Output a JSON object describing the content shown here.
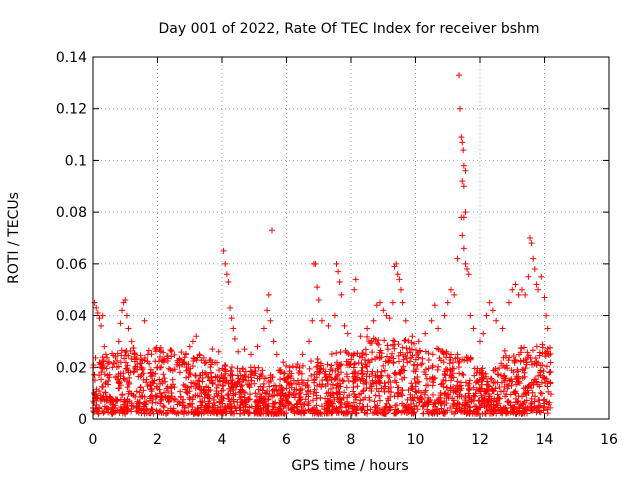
{
  "chart_data": {
    "type": "scatter",
    "title": "Day 001 of 2022, Rate Of TEC Index for receiver bshm",
    "xlabel": "GPS time / hours",
    "ylabel": "ROTI / TECUs",
    "xlim": [
      0,
      16
    ],
    "ylim": [
      0,
      0.14
    ],
    "xticks": [
      "0",
      "2",
      "4",
      "6",
      "8",
      "10",
      "12",
      "14",
      "16"
    ],
    "yticks": [
      "0",
      "0.02",
      "0.04",
      "0.06",
      "0.08",
      "0.1",
      "0.12",
      "0.14"
    ],
    "grid": true,
    "marker": "+",
    "color": "#ff0000",
    "series": [
      {
        "name": "ROTI",
        "points": [
          [
            0.05,
            0.045
          ],
          [
            0.1,
            0.043
          ],
          [
            0.15,
            0.041
          ],
          [
            0.2,
            0.039
          ],
          [
            0.25,
            0.036
          ],
          [
            0.3,
            0.04
          ],
          [
            0.35,
            0.028
          ],
          [
            0.4,
            0.025
          ],
          [
            0.5,
            0.022
          ],
          [
            0.6,
            0.02
          ],
          [
            0.7,
            0.024
          ],
          [
            0.8,
            0.03
          ],
          [
            0.85,
            0.037
          ],
          [
            0.9,
            0.042
          ],
          [
            0.95,
            0.045
          ],
          [
            1.0,
            0.046
          ],
          [
            1.05,
            0.04
          ],
          [
            1.1,
            0.035
          ],
          [
            1.2,
            0.03
          ],
          [
            1.3,
            0.025
          ],
          [
            1.5,
            0.02
          ],
          [
            1.6,
            0.038
          ],
          [
            1.7,
            0.025
          ],
          [
            1.8,
            0.018
          ],
          [
            2.0,
            0.02
          ],
          [
            2.2,
            0.022
          ],
          [
            2.4,
            0.019
          ],
          [
            2.6,
            0.021
          ],
          [
            2.8,
            0.022
          ],
          [
            3.0,
            0.028
          ],
          [
            3.1,
            0.03
          ],
          [
            3.2,
            0.032
          ],
          [
            3.3,
            0.025
          ],
          [
            3.5,
            0.022
          ],
          [
            3.7,
            0.027
          ],
          [
            3.9,
            0.026
          ],
          [
            4.05,
            0.065
          ],
          [
            4.1,
            0.06
          ],
          [
            4.15,
            0.056
          ],
          [
            4.2,
            0.053
          ],
          [
            4.25,
            0.043
          ],
          [
            4.3,
            0.039
          ],
          [
            4.35,
            0.035
          ],
          [
            4.4,
            0.031
          ],
          [
            4.5,
            0.026
          ],
          [
            4.7,
            0.027
          ],
          [
            4.9,
            0.025
          ],
          [
            5.1,
            0.028
          ],
          [
            5.3,
            0.035
          ],
          [
            5.4,
            0.042
          ],
          [
            5.45,
            0.048
          ],
          [
            5.5,
            0.038
          ],
          [
            5.55,
            0.073
          ],
          [
            5.6,
            0.03
          ],
          [
            5.7,
            0.025
          ],
          [
            5.9,
            0.022
          ],
          [
            6.1,
            0.02
          ],
          [
            6.3,
            0.02
          ],
          [
            6.5,
            0.025
          ],
          [
            6.7,
            0.03
          ],
          [
            6.8,
            0.038
          ],
          [
            6.85,
            0.06
          ],
          [
            6.9,
            0.06
          ],
          [
            6.95,
            0.051
          ],
          [
            7.0,
            0.046
          ],
          [
            7.1,
            0.038
          ],
          [
            7.3,
            0.036
          ],
          [
            7.5,
            0.04
          ],
          [
            7.55,
            0.06
          ],
          [
            7.6,
            0.057
          ],
          [
            7.65,
            0.053
          ],
          [
            7.7,
            0.048
          ],
          [
            7.8,
            0.036
          ],
          [
            7.9,
            0.033
          ],
          [
            8.1,
            0.05
          ],
          [
            8.15,
            0.054
          ],
          [
            8.3,
            0.032
          ],
          [
            8.5,
            0.035
          ],
          [
            8.7,
            0.038
          ],
          [
            8.8,
            0.044
          ],
          [
            8.9,
            0.045
          ],
          [
            9.0,
            0.042
          ],
          [
            9.1,
            0.04
          ],
          [
            9.2,
            0.039
          ],
          [
            9.3,
            0.045
          ],
          [
            9.35,
            0.059
          ],
          [
            9.4,
            0.06
          ],
          [
            9.45,
            0.056
          ],
          [
            9.5,
            0.054
          ],
          [
            9.55,
            0.05
          ],
          [
            9.6,
            0.045
          ],
          [
            9.7,
            0.038
          ],
          [
            9.9,
            0.032
          ],
          [
            10.1,
            0.03
          ],
          [
            10.3,
            0.033
          ],
          [
            10.5,
            0.038
          ],
          [
            10.6,
            0.044
          ],
          [
            10.7,
            0.035
          ],
          [
            10.9,
            0.04
          ],
          [
            11.0,
            0.045
          ],
          [
            11.1,
            0.05
          ],
          [
            11.2,
            0.048
          ],
          [
            11.3,
            0.062
          ],
          [
            11.35,
            0.133
          ],
          [
            11.38,
            0.12
          ],
          [
            11.42,
            0.109
          ],
          [
            11.45,
            0.107
          ],
          [
            11.48,
            0.104
          ],
          [
            11.5,
            0.098
          ],
          [
            11.55,
            0.096
          ],
          [
            11.45,
            0.092
          ],
          [
            11.5,
            0.09
          ],
          [
            11.55,
            0.08
          ],
          [
            11.42,
            0.078
          ],
          [
            11.5,
            0.078
          ],
          [
            11.45,
            0.071
          ],
          [
            11.5,
            0.066
          ],
          [
            11.55,
            0.06
          ],
          [
            11.6,
            0.058
          ],
          [
            11.65,
            0.056
          ],
          [
            11.7,
            0.04
          ],
          [
            11.8,
            0.035
          ],
          [
            12.0,
            0.03
          ],
          [
            12.1,
            0.033
          ],
          [
            12.2,
            0.04
          ],
          [
            12.3,
            0.045
          ],
          [
            12.4,
            0.042
          ],
          [
            12.5,
            0.038
          ],
          [
            12.7,
            0.035
          ],
          [
            12.9,
            0.045
          ],
          [
            13.0,
            0.05
          ],
          [
            13.1,
            0.052
          ],
          [
            13.2,
            0.048
          ],
          [
            13.3,
            0.05
          ],
          [
            13.4,
            0.048
          ],
          [
            13.5,
            0.055
          ],
          [
            13.55,
            0.07
          ],
          [
            13.6,
            0.068
          ],
          [
            13.65,
            0.062
          ],
          [
            13.7,
            0.058
          ],
          [
            13.75,
            0.052
          ],
          [
            13.8,
            0.05
          ],
          [
            13.9,
            0.055
          ],
          [
            14.0,
            0.047
          ],
          [
            14.05,
            0.04
          ],
          [
            14.1,
            0.035
          ],
          [
            14.15,
            0.018
          ]
        ],
        "baseline_band": {
          "x_range": [
            0,
            14.2
          ],
          "y_range": [
            0.002,
            0.024
          ]
        }
      }
    ]
  }
}
